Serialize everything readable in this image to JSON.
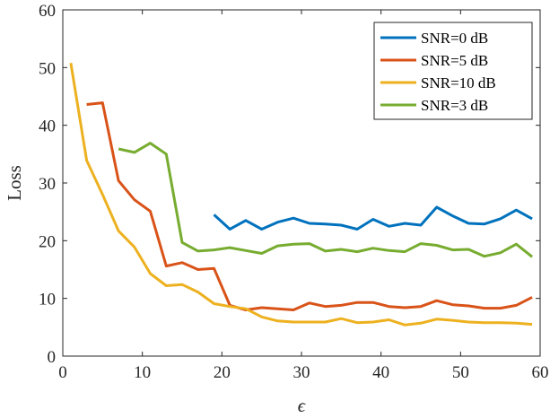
{
  "chart_data": {
    "type": "line",
    "title": "",
    "xlabel": "ϵ",
    "ylabel": "Loss",
    "xlim": [
      0,
      60
    ],
    "ylim": [
      0,
      60
    ],
    "xticks": [
      "0",
      "10",
      "20",
      "30",
      "40",
      "50",
      "60"
    ],
    "yticks": [
      "0",
      "10",
      "20",
      "30",
      "40",
      "50",
      "60"
    ],
    "grid": false,
    "legend_position": "top-right",
    "series": [
      {
        "name": "SNR=0 dB",
        "color": "#0072BD",
        "x": [
          19,
          21,
          23,
          25,
          27,
          29,
          31,
          33,
          35,
          37,
          39,
          41,
          43,
          45,
          47,
          49,
          51,
          53,
          55,
          57,
          59
        ],
        "y": [
          24.5,
          22.0,
          23.5,
          22.0,
          23.2,
          23.9,
          23.0,
          22.9,
          22.7,
          22.0,
          23.7,
          22.5,
          23.0,
          22.7,
          25.8,
          24.3,
          23.0,
          22.9,
          23.8,
          25.3,
          23.8
        ]
      },
      {
        "name": "SNR=5 dB",
        "color": "#D95319",
        "x": [
          3,
          5,
          7,
          9,
          11,
          13,
          15,
          17,
          19,
          21,
          23,
          25,
          27,
          29,
          31,
          33,
          35,
          37,
          39,
          41,
          43,
          45,
          47,
          49,
          51,
          53,
          55,
          57,
          59
        ],
        "y": [
          43.6,
          43.9,
          30.4,
          27.1,
          25.1,
          15.6,
          16.2,
          15.0,
          15.2,
          8.8,
          8.0,
          8.4,
          8.2,
          8.0,
          9.2,
          8.6,
          8.8,
          9.3,
          9.3,
          8.6,
          8.4,
          8.6,
          9.6,
          8.9,
          8.7,
          8.3,
          8.3,
          8.8,
          10.2
        ]
      },
      {
        "name": "SNR=10 dB",
        "color": "#EDB120",
        "x": [
          1,
          3,
          5,
          7,
          9,
          11,
          13,
          15,
          17,
          19,
          21,
          23,
          25,
          27,
          29,
          31,
          33,
          35,
          37,
          39,
          41,
          43,
          45,
          47,
          49,
          51,
          53,
          55,
          57,
          59
        ],
        "y": [
          50.8,
          33.9,
          28.0,
          21.7,
          18.9,
          14.3,
          12.2,
          12.4,
          11.1,
          9.1,
          8.6,
          8.2,
          6.8,
          6.1,
          5.9,
          5.9,
          5.9,
          6.5,
          5.8,
          5.9,
          6.3,
          5.4,
          5.7,
          6.4,
          6.2,
          5.9,
          5.8,
          5.8,
          5.7,
          5.5
        ]
      },
      {
        "name": "SNR=3 dB",
        "color": "#77AC30",
        "x": [
          7,
          9,
          11,
          13,
          15,
          17,
          19,
          21,
          23,
          25,
          27,
          29,
          31,
          33,
          35,
          37,
          39,
          41,
          43,
          45,
          47,
          49,
          51,
          53,
          55,
          57,
          59
        ],
        "y": [
          35.9,
          35.3,
          36.9,
          35.0,
          19.7,
          18.2,
          18.4,
          18.8,
          18.3,
          17.8,
          19.1,
          19.4,
          19.5,
          18.2,
          18.5,
          18.1,
          18.7,
          18.3,
          18.1,
          19.5,
          19.2,
          18.4,
          18.5,
          17.3,
          17.9,
          19.4,
          17.2
        ]
      }
    ]
  }
}
